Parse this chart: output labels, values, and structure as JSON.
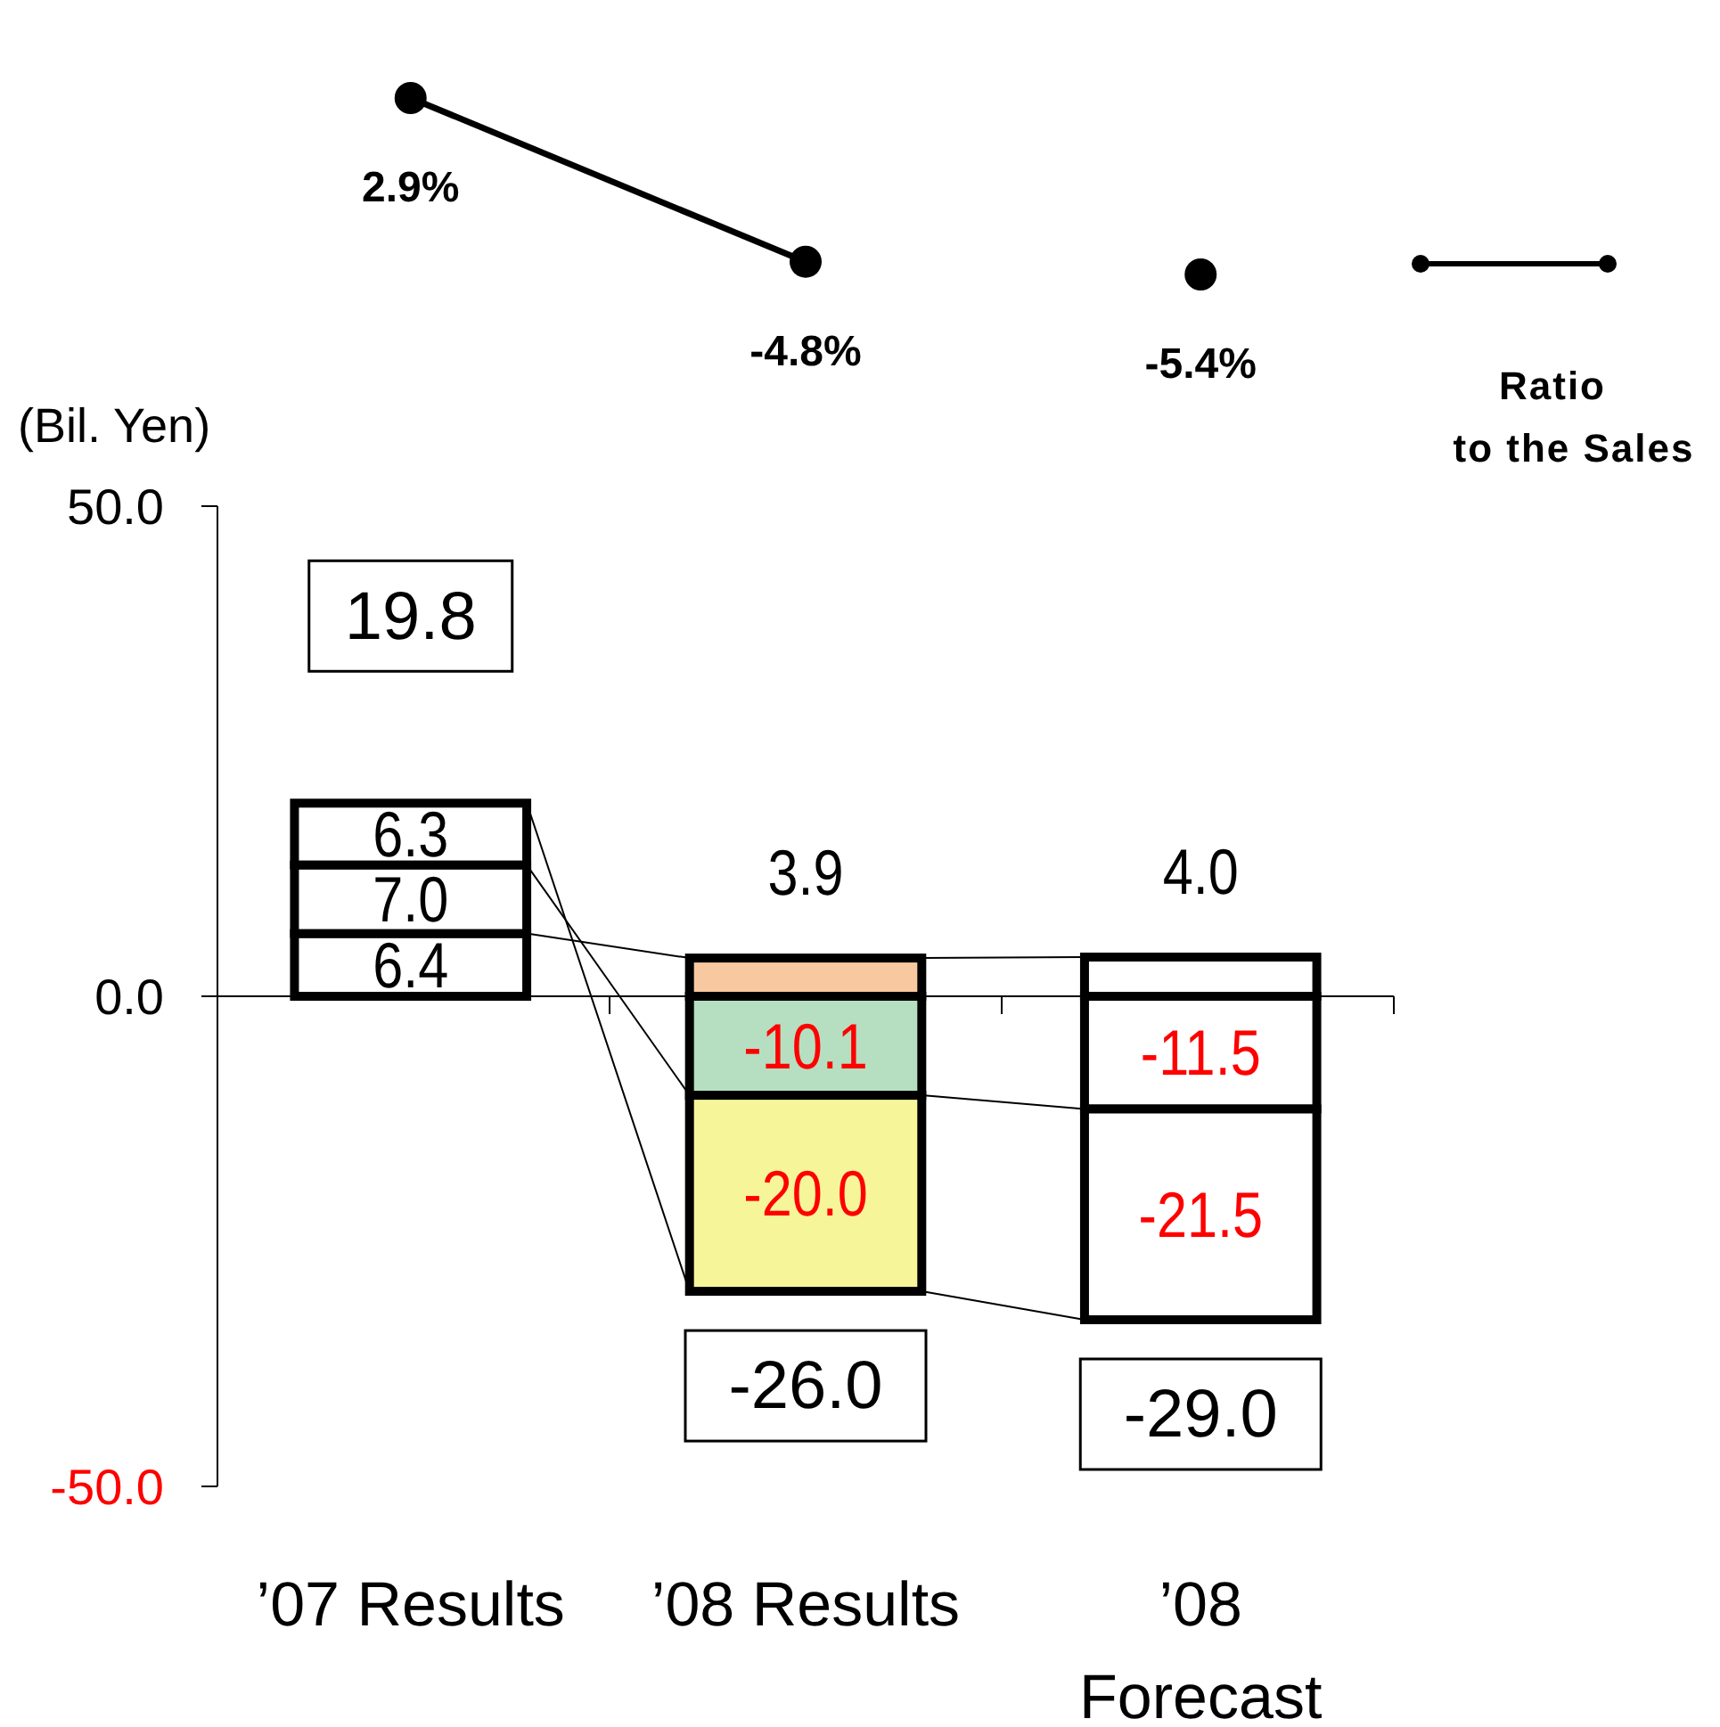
{
  "chart_data": [
    {
      "type": "line",
      "categories": [
        null,
        null,
        null
      ],
      "marker": "circle",
      "legend": "right",
      "series": [
        {
          "name": "Ratio to the Sales",
          "color": "#000000",
          "values": [
            2.9,
            -4.8,
            null
          ],
          "value_labels": [
            "2.9%",
            "-4.8%",
            null
          ]
        },
        {
          "color": "#000000",
          "values": [
            null,
            null,
            -5.4
          ],
          "value_labels": [
            null,
            null,
            "-5.4%"
          ]
        }
      ]
    },
    {
      "type": "bar",
      "stacked": true,
      "ylabel": "(Bil. Yen)",
      "categories": [
        "’07 Results",
        "’08 Results",
        "’08 Forecast"
      ],
      "ylim": [
        -50,
        50
      ],
      "yticks": [
        {
          "value": -50,
          "label": "-50.0"
        },
        {
          "value": 0,
          "label": "0.0"
        },
        {
          "value": 50,
          "label": "50.0"
        }
      ],
      "series": [
        {
          "colors": [
            "#ffffff",
            "#f8c9a0",
            "#ffffff"
          ],
          "values": [
            6.4,
            3.9,
            4.0
          ],
          "value_labels": [
            "6.4",
            "3.9",
            "4.0"
          ]
        },
        {
          "colors": [
            "#ffffff",
            "#b5dfc0",
            "#ffffff"
          ],
          "values": [
            7.0,
            -10.1,
            -11.5
          ],
          "value_labels": [
            "7.0",
            "-10.1",
            "-11.5"
          ]
        },
        {
          "colors": [
            "#ffffff",
            "#f7f59a",
            "#ffffff"
          ],
          "values": [
            6.3,
            -20.0,
            -21.5
          ],
          "value_labels": [
            "6.3",
            "-20.0",
            "-21.5"
          ]
        }
      ],
      "totals": [
        "19.8",
        "-26.0",
        "-29.0"
      ]
    }
  ]
}
